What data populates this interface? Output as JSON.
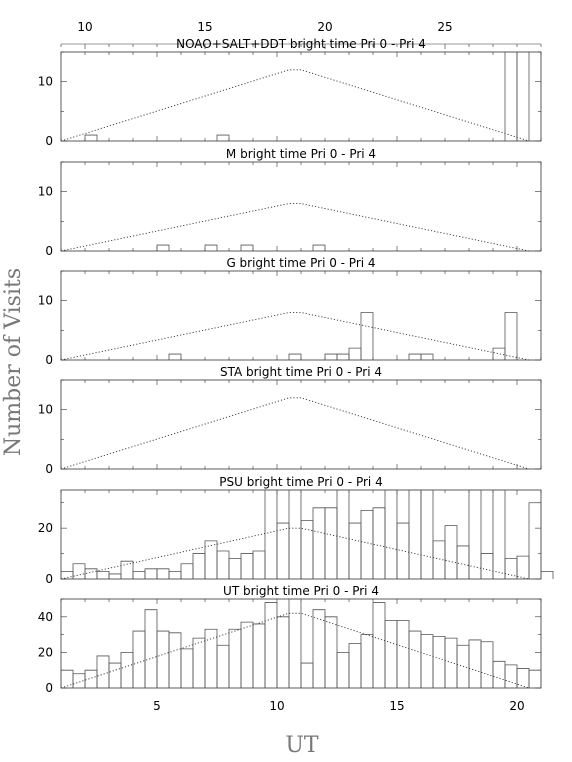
{
  "figure": {
    "ylabel": "Number of Visits",
    "xlabel": "UT",
    "top_axis_ticks": [
      "10",
      "15",
      "20",
      "25"
    ],
    "bottom_axis_ticks": [
      "5",
      "10",
      "15",
      "20"
    ]
  },
  "chart_data": [
    {
      "type": "bar",
      "title": "NOAO+SALT+DDT    bright time Pri 0 - Pri 4",
      "ylim": [
        0,
        15
      ],
      "ytick_labels": [
        "0",
        "10"
      ],
      "x_range": [
        1,
        21
      ],
      "bin_width": 0.5,
      "bins": [
        [
          2,
          1
        ],
        [
          7.5,
          1
        ],
        [
          19.5,
          15
        ],
        [
          20,
          15
        ]
      ],
      "envelope": [
        [
          1,
          0
        ],
        [
          10.5,
          12
        ],
        [
          11,
          12
        ],
        [
          20.5,
          0
        ]
      ]
    },
    {
      "type": "bar",
      "title": "M    bright time Pri 0 - Pri 4",
      "ylim": [
        0,
        15
      ],
      "ytick_labels": [
        "0",
        "10"
      ],
      "x_range": [
        1,
        21
      ],
      "bin_width": 0.5,
      "bins": [
        [
          5,
          1
        ],
        [
          7,
          1
        ],
        [
          8.5,
          1
        ],
        [
          11.5,
          1
        ]
      ],
      "envelope": [
        [
          1,
          0
        ],
        [
          10.5,
          8
        ],
        [
          11,
          8
        ],
        [
          20.5,
          0
        ]
      ]
    },
    {
      "type": "bar",
      "title": "G    bright time Pri 0 - Pri 4",
      "ylim": [
        0,
        15
      ],
      "ytick_labels": [
        "0",
        "10"
      ],
      "x_range": [
        1,
        21
      ],
      "bin_width": 0.5,
      "bins": [
        [
          5.5,
          1
        ],
        [
          10.5,
          1
        ],
        [
          12,
          1
        ],
        [
          12.5,
          1
        ],
        [
          13,
          2
        ],
        [
          13.5,
          8
        ],
        [
          15.5,
          1
        ],
        [
          16,
          1
        ],
        [
          19,
          2
        ],
        [
          19.5,
          8
        ]
      ],
      "envelope": [
        [
          1,
          0
        ],
        [
          10.5,
          8
        ],
        [
          11,
          8
        ],
        [
          20.5,
          0
        ]
      ]
    },
    {
      "type": "bar",
      "title": "STA    bright time Pri 0 - Pri 4",
      "ylim": [
        0,
        15
      ],
      "ytick_labels": [
        "0",
        "10"
      ],
      "x_range": [
        1,
        21
      ],
      "bin_width": 0.5,
      "bins": [],
      "envelope": [
        [
          1,
          0
        ],
        [
          10.5,
          12
        ],
        [
          11,
          12
        ],
        [
          20.5,
          0
        ]
      ]
    },
    {
      "type": "bar",
      "title": "PSU    bright time Pri 0 - Pri 4",
      "ylim": [
        0,
        35
      ],
      "ytick_labels": [
        "0",
        "20"
      ],
      "x_range": [
        1,
        21
      ],
      "bin_width": 0.5,
      "bins": [
        [
          1,
          3
        ],
        [
          1.5,
          6
        ],
        [
          2,
          4
        ],
        [
          2.5,
          3
        ],
        [
          3,
          2
        ],
        [
          3.5,
          7
        ],
        [
          4,
          3
        ],
        [
          4.5,
          4
        ],
        [
          5,
          4
        ],
        [
          5.5,
          3
        ],
        [
          6,
          6
        ],
        [
          6.5,
          10
        ],
        [
          7,
          15
        ],
        [
          7.5,
          11
        ],
        [
          8,
          8
        ],
        [
          8.5,
          10
        ],
        [
          9,
          11
        ],
        [
          9.5,
          35
        ],
        [
          10,
          22
        ],
        [
          10.5,
          35
        ],
        [
          11,
          23
        ],
        [
          11.5,
          28
        ],
        [
          12,
          28
        ],
        [
          12.5,
          35
        ],
        [
          13,
          22
        ],
        [
          13.5,
          27
        ],
        [
          14,
          28
        ],
        [
          14.5,
          35
        ],
        [
          15,
          22
        ],
        [
          15.5,
          35
        ],
        [
          16,
          35
        ],
        [
          16.5,
          15
        ],
        [
          17,
          21
        ],
        [
          17.5,
          13
        ],
        [
          18,
          35
        ],
        [
          18.5,
          10
        ],
        [
          19,
          35
        ],
        [
          19.5,
          8
        ],
        [
          20,
          9
        ],
        [
          20.5,
          30
        ],
        [
          21,
          3
        ]
      ],
      "envelope": [
        [
          1,
          0
        ],
        [
          10.5,
          20
        ],
        [
          11,
          20
        ],
        [
          20.5,
          0
        ]
      ]
    },
    {
      "type": "bar",
      "title": "UT    bright time Pri 0 - Pri 4",
      "ylim": [
        0,
        50
      ],
      "ytick_labels": [
        "0",
        "20",
        "40"
      ],
      "x_range": [
        1,
        21
      ],
      "bin_width": 0.5,
      "bins": [
        [
          1,
          10
        ],
        [
          1.5,
          8
        ],
        [
          2,
          10
        ],
        [
          2.5,
          18
        ],
        [
          3,
          14
        ],
        [
          3.5,
          20
        ],
        [
          4,
          32
        ],
        [
          4.5,
          44
        ],
        [
          5,
          32
        ],
        [
          5.5,
          31
        ],
        [
          6,
          22
        ],
        [
          6.5,
          28
        ],
        [
          7,
          33
        ],
        [
          7.5,
          24
        ],
        [
          8,
          33
        ],
        [
          8.5,
          37
        ],
        [
          9,
          36
        ],
        [
          9.5,
          48
        ],
        [
          10,
          40
        ],
        [
          10.5,
          50
        ],
        [
          11,
          14
        ],
        [
          11.5,
          44
        ],
        [
          12,
          40
        ],
        [
          12.5,
          20
        ],
        [
          13,
          25
        ],
        [
          13.5,
          30
        ],
        [
          14,
          48
        ],
        [
          14.5,
          38
        ],
        [
          15,
          38
        ],
        [
          15.5,
          32
        ],
        [
          16,
          30
        ],
        [
          16.5,
          29
        ],
        [
          17,
          28
        ],
        [
          17.5,
          24
        ],
        [
          18,
          27
        ],
        [
          18.5,
          26
        ],
        [
          19,
          15
        ],
        [
          19.5,
          13
        ],
        [
          20,
          11
        ],
        [
          20.5,
          10
        ]
      ],
      "envelope": [
        [
          1,
          0
        ],
        [
          10.5,
          42
        ],
        [
          11,
          42
        ],
        [
          20.5,
          0
        ]
      ]
    }
  ]
}
